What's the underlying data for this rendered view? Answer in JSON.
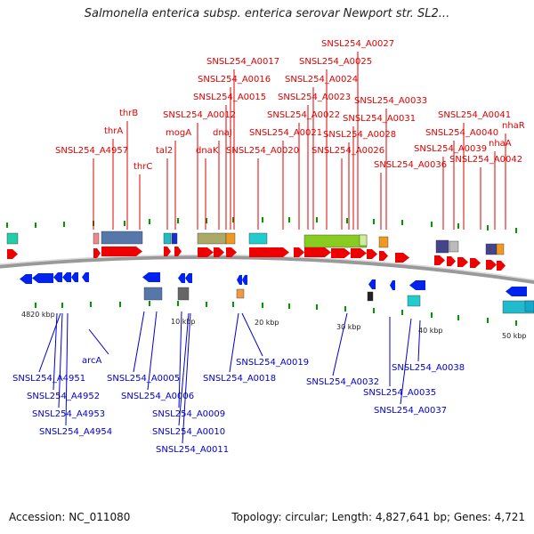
{
  "title": "Salmonella enterica subsp. enterica serovar Newport str. SL2...",
  "footer": {
    "accession": "Accession: NC_011080",
    "summary": "Topology: circular; Length: 4,827,641 bp; Genes: 4,721"
  },
  "colors": {
    "top_label": "#dd0000",
    "bottom_label": "#0000cc",
    "forward_arrow": "#ee0000",
    "reverse_arrow": "#0022ee",
    "backbone": "#999999",
    "tick": "#009900"
  },
  "scale_labels": [
    "4820 kbp",
    "10 kbp",
    "20 kbp",
    "30 kbp",
    "40 kbp",
    "50 kbp"
  ],
  "top_labels": [
    "SNSL254_A4957",
    "thrA",
    "thrB",
    "thrC",
    "tal2",
    "mogA",
    "SNSL254_A0012",
    "dnaK",
    "dnaJ",
    "SNSL254_A0015",
    "SNSL254_A0016",
    "SNSL254_A0017",
    "SNSL254_A0020",
    "SNSL254_A0021",
    "SNSL254_A0022",
    "SNSL254_A0023",
    "SNSL254_A0024",
    "SNSL254_A0025",
    "SNSL254_A0026",
    "SNSL254_A0027",
    "SNSL254_A0028",
    "SNSL254_A0031",
    "SNSL254_A0033",
    "SNSL254_A0036",
    "SNSL254_A0039",
    "SNSL254_A0040",
    "SNSL254_A0041",
    "SNSL254_A0042",
    "nhaA",
    "nhaR"
  ],
  "bottom_labels": [
    "arcA",
    "SNSL254_A4951",
    "SNSL254_A4952",
    "SNSL254_A4953",
    "SNSL254_A4954",
    "SNSL254_A0005",
    "SNSL254_A0006",
    "SNSL254_A0009",
    "SNSL254_A0010",
    "SNSL254_A0011",
    "SNSL254_A0018",
    "SNSL254_A0019",
    "SNSL254_A0032",
    "SNSL254_A0035",
    "SNSL254_A0037",
    "SNSL254_A0038"
  ]
}
